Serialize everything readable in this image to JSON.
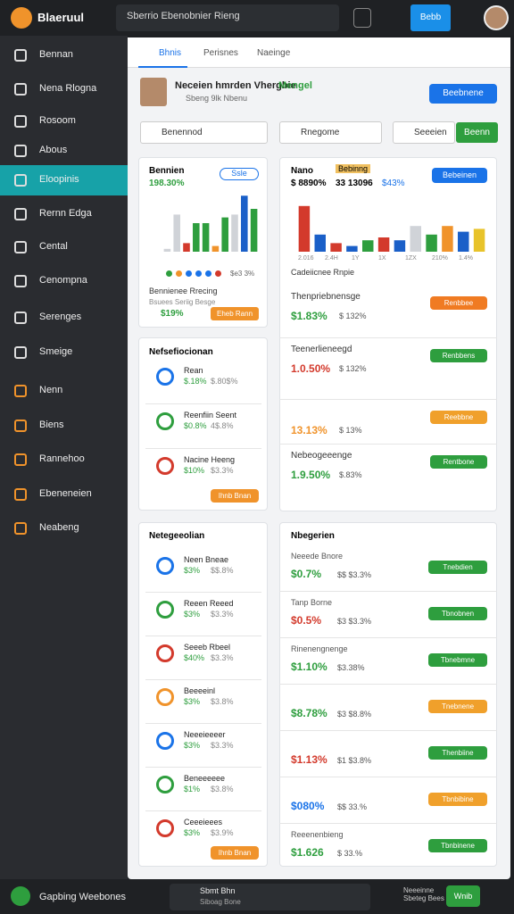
{
  "topbar": {
    "logo": "Blaeruul",
    "search": "Sberrio Ebenobnier Rieng",
    "button": "Bebb"
  },
  "sidebar": [
    {
      "label": "Bennan"
    },
    {
      "label": "Nena Rlogna"
    },
    {
      "label": "Rosoom"
    },
    {
      "label": "Abous"
    },
    {
      "label": "Eloopinis",
      "active": true
    },
    {
      "label": "Rernn Edga"
    },
    {
      "label": "Cental"
    },
    {
      "label": "Cenompna"
    },
    {
      "label": "Serenges"
    },
    {
      "label": "Smeige"
    },
    {
      "label": "Nenn"
    },
    {
      "label": "Biens"
    },
    {
      "label": "Rannehoo"
    },
    {
      "label": "Ebeneneien"
    },
    {
      "label": "Neabeng"
    }
  ],
  "tabs": [
    "Bhnis",
    "Perisnes",
    "Naeinge"
  ],
  "profile": {
    "name": "Neceien hmrden Vhergbie",
    "tag": "Mengel",
    "sub": "Sbeng 9lk Nbenu",
    "button": "Beebnene"
  },
  "filters": [
    "Benennod",
    "Rnegome",
    "Seeeien"
  ],
  "filter_button": "Beenn",
  "chart_left": {
    "title": "Bennien",
    "value": "198.30%",
    "badge": "Ssle",
    "ylim": [
      0,
      100
    ],
    "values": [
      5,
      65,
      15,
      50,
      50,
      10,
      60,
      65,
      98,
      75
    ],
    "colors": [
      "#d0d3d8",
      "#d0d3d8",
      "#d33a2c",
      "#2e9e3e",
      "#2e9e3e",
      "#f0932b",
      "#2e9e3e",
      "#d0d3d8",
      "#1a5fc8",
      "#2e9e3e"
    ],
    "legend": "$e3 3%",
    "footer": "Bennienee Rrecing",
    "sub": "Bsuees Seriig Besge",
    "stat": "$19%",
    "button": "Eheb Rann"
  },
  "chart_right": {
    "title": "Nano",
    "badge": "Bebinng",
    "value": "$ 8890%",
    "value2": "33 13096",
    "value3": "$43%",
    "button": "Bebeinen",
    "ylim": [
      0,
      100
    ],
    "values": [
      80,
      30,
      15,
      10,
      20,
      25,
      20,
      45,
      30,
      45,
      35,
      40
    ],
    "colors": [
      "#d33a2c",
      "#1a5fc8",
      "#d33a2c",
      "#1a5fc8",
      "#2e9e3e",
      "#d33a2c",
      "#1a5fc8",
      "#d0d3d8",
      "#2e9e3e",
      "#f0932b",
      "#1a5fc8",
      "#e8c32a"
    ],
    "xlabels": [
      "2.016",
      "2.4H",
      "1Y",
      "1X",
      "1ZX",
      "210%",
      "1.4%"
    ],
    "footer": "Cadeiicnee Rnpie"
  },
  "right_rows": [
    {
      "title": "Thenpriebnensge",
      "value": "$1.83%",
      "small": "$ 132%",
      "button": "Renbbee",
      "color": "#f07b22",
      "value_color": "#2e9e3e"
    },
    {
      "title": "Teenerlieneegd",
      "value": "1.0.50%",
      "small": "$ 132%",
      "button": "Renbbens",
      "color": "#2e9e3e",
      "value_color": "#d33a2c"
    },
    {
      "value": "13.13%",
      "small": "$ 13%",
      "button": "Reebbne",
      "color": "#f0a02b",
      "value_color": "#f0932b"
    },
    {
      "title": "Nebeogeeenge",
      "value": "1.9.50%",
      "small": "$.83%",
      "button": "Rentbone",
      "color": "#2e9e3e",
      "value_color": "#2e9e3e"
    }
  ],
  "left_list": {
    "title": "Nefsefiocionan",
    "button": "Ihnb Bnan",
    "items": [
      {
        "title": "Rean",
        "a": "$.18%",
        "b": "$.80$%"
      },
      {
        "title": "Reenfiin Seent",
        "a": "$0.8%",
        "b": "4$.8%"
      },
      {
        "title": "Nacine Heeng",
        "a": "$10%",
        "b": "$3.3%"
      }
    ]
  },
  "left_list2": {
    "title": "Netegeeolian",
    "button": "Ihnb Bnan",
    "items": [
      {
        "title": "Neen Bneae",
        "a": "$3%",
        "b": "$$.8%"
      },
      {
        "title": "Reeen Reeed",
        "a": "$3%",
        "b": "$3.3%"
      },
      {
        "title": "Seeeb Rbeel",
        "a": "$40%",
        "b": "$3.3%"
      },
      {
        "title": "Beeeeinl",
        "a": "$3%",
        "b": "$3.8%"
      },
      {
        "title": "Neeeieeeer",
        "a": "$3%",
        "b": "$3.3%"
      },
      {
        "title": "Beneeeeee",
        "a": "$1%",
        "b": "$3.8%"
      },
      {
        "title": "Ceeeieees",
        "a": "$3%",
        "b": "$3.9%"
      }
    ]
  },
  "right_list": {
    "title": "Nbegerien",
    "items": [
      {
        "title": "Neeede Bnore",
        "value": "$0.7%",
        "small": "$$ $3.3%",
        "button": "Tnebdien",
        "color": "#2e9e3e",
        "value_color": "#2e9e3e"
      },
      {
        "title": "Tanp Borne",
        "value": "$0.5%",
        "small": "$3 $3.3%",
        "button": "Tbnobnen",
        "color": "#2e9e3e",
        "value_color": "#d33a2c"
      },
      {
        "title": "Rinenengnenge",
        "value": "$1.10%",
        "small": "$3.38%",
        "button": "Tbnebmne",
        "color": "#2e9e3e",
        "value_color": "#2e9e3e"
      },
      {
        "value": "$8.78%",
        "small": "$3 $8.8%",
        "button": "Tnebnene",
        "color": "#f0a02b",
        "value_color": "#2e9e3e"
      },
      {
        "value": "$1.13%",
        "small": "$1 $3.8%",
        "button": "Thenbiine",
        "color": "#2e9e3e",
        "value_color": "#d33a2c"
      },
      {
        "value": "$080%",
        "small": "$$ 33.%",
        "button": "Tbnbibine",
        "color": "#f0a02b",
        "value_color": "#1a73e8"
      },
      {
        "title": "Reeenenbieng",
        "value": "$1.626",
        "small": "$ 33.%",
        "button": "Tbnbinene",
        "color": "#2e9e3e",
        "value_color": "#2e9e3e"
      }
    ]
  },
  "bottombar": {
    "title": "Gapbing Weebones",
    "select": "Sbmt Bhn",
    "select_sub": "Siboag Bone",
    "info": "Neeeinne Sbeteg Bees",
    "button": "Wnib"
  }
}
